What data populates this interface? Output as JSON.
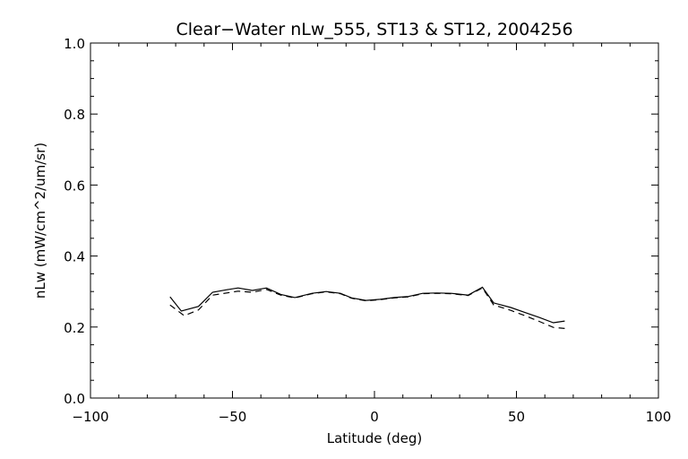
{
  "chart_data": {
    "type": "line",
    "title": "Clear−Water nLw_555, ST13 & ST12, 2004256",
    "xlabel": "Latitude (deg)",
    "ylabel": "nLw (mW/cm^2/um/sr)",
    "xlim": [
      -100,
      100
    ],
    "ylim": [
      0.0,
      1.0
    ],
    "x_ticks": [
      "−100",
      "−50",
      "0",
      "50",
      "100"
    ],
    "y_ticks": [
      "0.0",
      "0.2",
      "0.4",
      "0.6",
      "0.8",
      "1.0"
    ],
    "grid": false,
    "series": [
      {
        "style": "solid",
        "x": [
          -72,
          -68,
          -62,
          -57,
          -52,
          -48,
          -43,
          -38,
          -33,
          -28,
          -22,
          -17,
          -12,
          -8,
          -3,
          2,
          7,
          12,
          17,
          22,
          27,
          33,
          38,
          42,
          48,
          53,
          58,
          63,
          67
        ],
        "y": [
          0.285,
          0.245,
          0.258,
          0.298,
          0.305,
          0.31,
          0.303,
          0.31,
          0.292,
          0.283,
          0.295,
          0.3,
          0.295,
          0.282,
          0.275,
          0.278,
          0.283,
          0.286,
          0.295,
          0.296,
          0.295,
          0.29,
          0.312,
          0.268,
          0.255,
          0.241,
          0.227,
          0.212,
          0.217
        ]
      },
      {
        "style": "dashed",
        "x": [
          -72,
          -67,
          -62,
          -57,
          -52,
          -48,
          -43,
          -38,
          -33,
          -28,
          -22,
          -17,
          -12,
          -8,
          -3,
          2,
          7,
          12,
          17,
          22,
          27,
          33,
          38,
          42,
          48,
          53,
          58,
          63,
          67
        ],
        "y": [
          0.262,
          0.232,
          0.248,
          0.29,
          0.296,
          0.301,
          0.298,
          0.306,
          0.29,
          0.282,
          0.294,
          0.299,
          0.294,
          0.281,
          0.274,
          0.277,
          0.282,
          0.285,
          0.294,
          0.295,
          0.294,
          0.289,
          0.31,
          0.262,
          0.247,
          0.232,
          0.216,
          0.199,
          0.196
        ]
      }
    ]
  }
}
